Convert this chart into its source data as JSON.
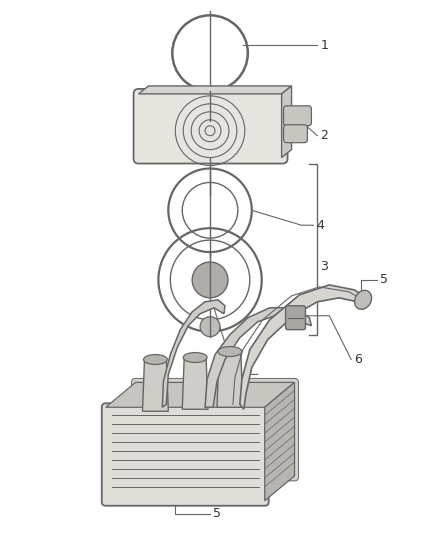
{
  "bg_color": "#ffffff",
  "line_color": "#666666",
  "label_color": "#333333",
  "fig_width": 4.38,
  "fig_height": 5.33,
  "dpi": 100,
  "font_size": 9
}
